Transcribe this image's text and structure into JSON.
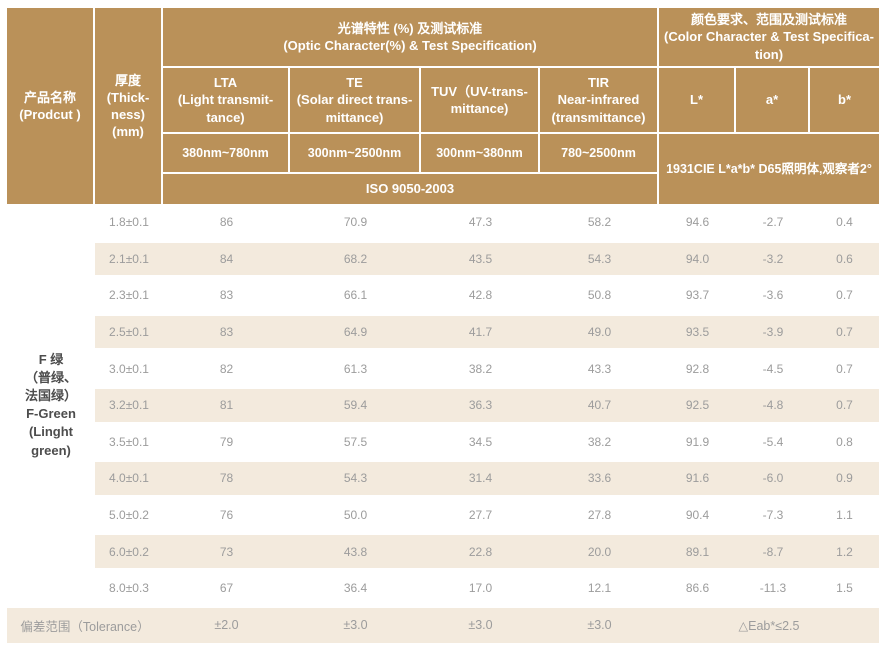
{
  "colors": {
    "header_bg": "#ba9159",
    "header_text": "#ffffff",
    "row_alt_bg": "#f3eadd",
    "body_text": "#9c9c9c",
    "product_text": "#4d4d4d"
  },
  "table": {
    "header": {
      "product": "产品名称\n(Prodcut )",
      "thickness": "厚度\n(Thick-\nness)\n(mm)",
      "optic_group": "光谱特性 (%) 及测试标准\n(Optic Character(%) & Test Specification)",
      "color_group": "颜色要求、范围及测试标准\n(Color Character & Test Specifica-\ntion)",
      "lta": "LTA\n(Light transmit-\ntance)",
      "te": "TE\n(Solar direct trans-\nmittance)",
      "tuv": "TUV（UV-trans-\nmittance)",
      "tir": "TIR\nNear-infrared\n(transmittance)",
      "l_star": "L*",
      "a_star": "a*",
      "b_star": "b*",
      "range_lta": "380nm~780nm",
      "range_te": "300nm~2500nm",
      "range_tuv": "300nm~380nm",
      "range_tir": "780~2500nm",
      "cie": "1931CIE L*a*b* D65照明体,观察者2°",
      "iso": "ISO 9050-2003"
    },
    "product_name": "F 绿\n（普绿、\n法国绿）\nF-Green\n(Linght\ngreen)",
    "rows": [
      {
        "thickness": "1.8±0.1",
        "values": [
          "86",
          "70.9",
          "47.3",
          "58.2",
          "94.6",
          "-2.7",
          "0.4"
        ]
      },
      {
        "thickness": "2.1±0.1",
        "values": [
          "84",
          "68.2",
          "43.5",
          "54.3",
          "94.0",
          "-3.2",
          "0.6"
        ]
      },
      {
        "thickness": "2.3±0.1",
        "values": [
          "83",
          "66.1",
          "42.8",
          "50.8",
          "93.7",
          "-3.6",
          "0.7"
        ]
      },
      {
        "thickness": "2.5±0.1",
        "values": [
          "83",
          "64.9",
          "41.7",
          "49.0",
          "93.5",
          "-3.9",
          "0.7"
        ]
      },
      {
        "thickness": "3.0±0.1",
        "values": [
          "82",
          "61.3",
          "38.2",
          "43.3",
          "92.8",
          "-4.5",
          "0.7"
        ]
      },
      {
        "thickness": "3.2±0.1",
        "values": [
          "81",
          "59.4",
          "36.3",
          "40.7",
          "92.5",
          "-4.8",
          "0.7"
        ]
      },
      {
        "thickness": "3.5±0.1",
        "values": [
          "79",
          "57.5",
          "34.5",
          "38.2",
          "91.9",
          "-5.4",
          "0.8"
        ]
      },
      {
        "thickness": "4.0±0.1",
        "values": [
          "78",
          "54.3",
          "31.4",
          "33.6",
          "91.6",
          "-6.0",
          "0.9"
        ]
      },
      {
        "thickness": "5.0±0.2",
        "values": [
          "76",
          "50.0",
          "27.7",
          "27.8",
          "90.4",
          "-7.3",
          "1.1"
        ]
      },
      {
        "thickness": "6.0±0.2",
        "values": [
          "73",
          "43.8",
          "22.8",
          "20.0",
          "89.1",
          "-8.7",
          "1.2"
        ]
      },
      {
        "thickness": "8.0±0.3",
        "values": [
          "67",
          "36.4",
          "17.0",
          "12.1",
          "86.6",
          "-11.3",
          "1.5"
        ]
      }
    ],
    "tolerance": {
      "label": "偏差范围（Tolerance）",
      "lta": "±2.0",
      "te": "±3.0",
      "tuv": "±3.0",
      "tir": "±3.0",
      "eab": "△Eab*≤2.5"
    }
  }
}
